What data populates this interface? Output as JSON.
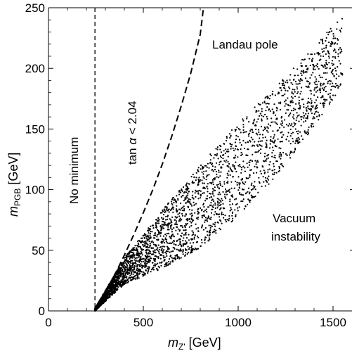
{
  "chart_data": {
    "type": "scatter",
    "xlim": [
      0,
      1600
    ],
    "ylim": [
      0,
      250
    ],
    "xticks": [
      0,
      500,
      1000,
      1500
    ],
    "yticks": [
      0,
      50,
      100,
      150,
      200,
      250
    ],
    "xticks_minor": [
      100,
      200,
      300,
      400,
      600,
      700,
      800,
      900,
      1100,
      1200,
      1300,
      1400
    ],
    "yticks_minor": [
      10,
      20,
      30,
      40,
      60,
      70,
      80,
      90,
      110,
      120,
      130,
      140,
      160,
      170,
      180,
      190,
      210,
      220,
      230,
      240
    ],
    "tick_labels_x": [
      "0",
      "500",
      "1000",
      "1500"
    ],
    "tick_labels_y": [
      "0",
      "50",
      "100",
      "150",
      "200",
      "250"
    ],
    "xlabel_main": "m",
    "xlabel_sub": "Z'",
    "xlabel_unit": " [GeV]",
    "ylabel_main": "m",
    "ylabel_sub": "PGB",
    "ylabel_unit": " [GeV]",
    "grid": false,
    "annotations": {
      "no_minimum": "No minimum",
      "tan_alpha_pre": "tan ",
      "tan_alpha_symbol": "α",
      "tan_alpha_post": " < 2.04",
      "landau_pole": "Landau pole",
      "vacuum_line1": "Vacuum",
      "vacuum_line2": "instability"
    },
    "vertical_boundary": {
      "x": 245
    },
    "tan_alpha_boundary": [
      [
        245,
        0
      ],
      [
        300,
        16
      ],
      [
        350,
        30
      ],
      [
        400,
        46
      ],
      [
        450,
        63
      ],
      [
        500,
        81
      ],
      [
        550,
        100
      ],
      [
        600,
        121
      ],
      [
        650,
        144
      ],
      [
        700,
        169
      ],
      [
        750,
        196
      ],
      [
        800,
        228
      ],
      [
        817,
        250
      ]
    ],
    "scatter_region": {
      "lower_edge": [
        [
          245,
          0
        ],
        [
          400,
          22
        ],
        [
          600,
          35
        ],
        [
          800,
          52
        ],
        [
          1000,
          78
        ],
        [
          1200,
          110
        ],
        [
          1400,
          152
        ],
        [
          1550,
          186
        ]
      ],
      "upper_edge": [
        [
          245,
          2
        ],
        [
          400,
          44
        ],
        [
          500,
          63
        ],
        [
          600,
          83
        ],
        [
          800,
          120
        ],
        [
          1000,
          155
        ],
        [
          1200,
          185
        ],
        [
          1400,
          218
        ],
        [
          1550,
          245
        ]
      ],
      "num_points": 3500
    },
    "colors": {
      "points": "#000000",
      "lines": "#000000",
      "frame": "#000000"
    }
  }
}
